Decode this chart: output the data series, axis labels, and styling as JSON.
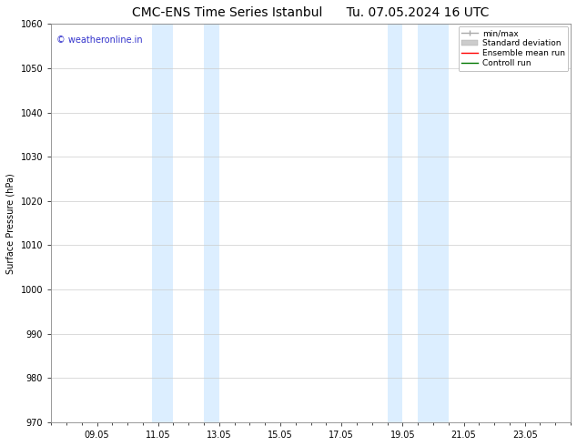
{
  "title_left": "CMC-ENS Time Series Istanbul",
  "title_right": "Tu. 07.05.2024 16 UTC",
  "ylabel": "Surface Pressure (hPa)",
  "ylim": [
    970,
    1060
  ],
  "yticks": [
    970,
    980,
    990,
    1000,
    1010,
    1020,
    1030,
    1040,
    1050,
    1060
  ],
  "xtick_labels": [
    "09.05",
    "11.05",
    "13.05",
    "15.05",
    "17.05",
    "19.05",
    "21.05",
    "23.05"
  ],
  "xtick_positions": [
    2.0,
    4.0,
    6.0,
    8.0,
    10.0,
    12.0,
    14.0,
    16.0
  ],
  "xlim": [
    0.5,
    17.5
  ],
  "shade_regions": [
    {
      "x_start": 3.5,
      "x_end": 4.5
    },
    {
      "x_start": 5.5,
      "x_end": 6.0
    },
    {
      "x_start": 11.5,
      "x_end": 12.0
    },
    {
      "x_start": 12.5,
      "x_end": 13.5
    }
  ],
  "shade_color": "#dceeff",
  "watermark": "© weatheronline.in",
  "watermark_color": "#3333cc",
  "legend_items": [
    {
      "label": "min/max",
      "color": "#aaaaaa",
      "lw": 1.0
    },
    {
      "label": "Standard deviation",
      "color": "#cccccc",
      "lw": 5
    },
    {
      "label": "Ensemble mean run",
      "color": "#ff0000",
      "lw": 1.0
    },
    {
      "label": "Controll run",
      "color": "#007700",
      "lw": 1.0
    }
  ],
  "background_color": "#ffffff",
  "grid_color": "#cccccc",
  "title_fontsize": 10,
  "label_fontsize": 7,
  "tick_fontsize": 7,
  "watermark_fontsize": 7,
  "legend_fontsize": 6.5
}
